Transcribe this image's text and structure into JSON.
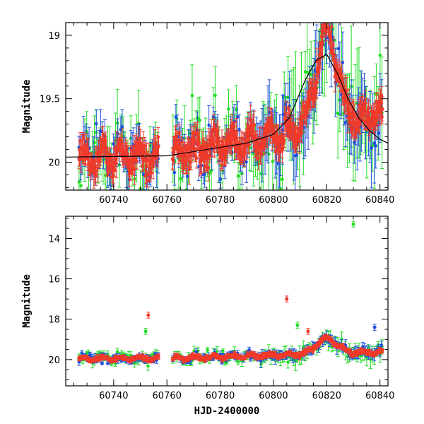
{
  "chart_data": [
    {
      "type": "scatter",
      "title": "",
      "xlabel": "",
      "ylabel": "Magnitude",
      "xlim": [
        60722,
        60843
      ],
      "ylim": [
        20.22,
        18.9
      ],
      "y_inverted": true,
      "x_major_ticks": [
        60740,
        60760,
        60780,
        60800,
        60820,
        60840
      ],
      "y_major_ticks": [
        19,
        19.5,
        20
      ],
      "x_minor_step": 5,
      "y_minor_step": 0.1,
      "series_colors": {
        "green": "#22dd22",
        "blue": "#1f4fe0",
        "red": "#f03a2a"
      },
      "model_curve": {
        "color": "#000000",
        "x": [
          60722,
          60760,
          60790,
          60800,
          60806,
          60812,
          60816,
          60820,
          60824,
          60828,
          60832,
          60836,
          60840,
          60843
        ],
        "y": [
          19.96,
          19.95,
          19.85,
          19.78,
          19.65,
          19.35,
          19.2,
          19.15,
          19.3,
          19.5,
          19.65,
          19.75,
          19.82,
          19.85
        ]
      }
    },
    {
      "type": "scatter",
      "title": "",
      "xlabel": "HJD-2400000",
      "ylabel": "Magnitude",
      "xlim": [
        60722,
        60843
      ],
      "ylim": [
        21.3,
        12.9
      ],
      "y_inverted": true,
      "x_major_ticks": [
        60740,
        60760,
        60780,
        60800,
        60820,
        60840
      ],
      "y_major_ticks": [
        14,
        16,
        18,
        20
      ],
      "x_minor_step": 5,
      "y_minor_step": 0.5,
      "series_colors": {
        "green": "#22dd22",
        "blue": "#1f4fe0",
        "red": "#f03a2a"
      },
      "outliers": [
        {
          "series": "green",
          "x": 60830,
          "y": 13.3
        },
        {
          "series": "red",
          "x": 60753,
          "y": 17.8
        },
        {
          "series": "red",
          "x": 60805,
          "y": 17.0
        },
        {
          "series": "green",
          "x": 60752,
          "y": 18.6
        },
        {
          "series": "blue",
          "x": 60838,
          "y": 18.4
        },
        {
          "series": "green",
          "x": 60809,
          "y": 18.3
        },
        {
          "series": "red",
          "x": 60813,
          "y": 18.6
        }
      ]
    }
  ]
}
